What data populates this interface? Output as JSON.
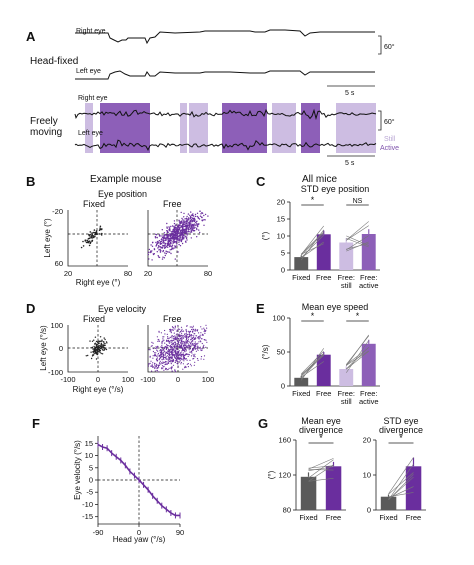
{
  "colors": {
    "fixed": "#5a5a5a",
    "free": "#6a2e9e",
    "still": "#cdbde2",
    "active": "#8d5fb8",
    "line": "#777777"
  },
  "panel_labels": {
    "A": "A",
    "B": "B",
    "C": "C",
    "D": "D",
    "E": "E",
    "F": "F",
    "G": "G"
  },
  "panel_a": {
    "head_fixed_label": "Head-fixed",
    "freely_moving_label": "Freely\nmoving",
    "right_eye_label": "Right eye",
    "left_eye_label": "Left eye",
    "scale_deg": "60°",
    "scale_time": "5 s",
    "legend_still": "Still",
    "legend_active": "Active"
  },
  "col_headers": {
    "example": "Example mouse",
    "all": "All mice"
  },
  "panel_b": {
    "title": "Eye position",
    "sub_fixed": "Fixed",
    "sub_free": "Free",
    "xlabel": "Right eye (°)",
    "ylabel": "Left eye (°)",
    "xticks": [
      "20",
      "80"
    ],
    "xticks_free": [
      "20",
      "80"
    ],
    "yticks": [
      "-20",
      "60"
    ]
  },
  "panel_d": {
    "title": "Eye velocity",
    "sub_fixed": "Fixed",
    "sub_free": "Free",
    "xlabel": "Right eye (°/s)",
    "ylabel": "Left eye (°/s)",
    "xticks": [
      "-100",
      "0",
      "100"
    ],
    "xticks_free": [
      "-100",
      "0",
      "100"
    ],
    "yticks": [
      "100",
      "0",
      "-100"
    ]
  },
  "panel_f": {
    "xlabel": "Head yaw (°/s)",
    "ylabel": "Eye velocity (°/s)",
    "xticks": [
      "-90",
      "0",
      "90"
    ],
    "yticks": [
      "15",
      "10",
      "5",
      "0",
      "-5",
      "-10",
      "-15"
    ]
  },
  "chart_data": [
    {
      "panel": "C",
      "type": "bar",
      "title": "STD eye position",
      "ylabel": "(°)",
      "ylim": [
        0,
        20
      ],
      "yticks": [
        "0",
        "5",
        "10",
        "15",
        "20"
      ],
      "categories": [
        "Fixed",
        "Free",
        "Free:\nstill",
        "Free:\nactive"
      ],
      "values": [
        3.8,
        10.5,
        8.1,
        10.6
      ],
      "errors": [
        0.5,
        1.1,
        1.3,
        1.4
      ],
      "significance": [
        "*",
        "NS"
      ]
    },
    {
      "panel": "E",
      "type": "bar",
      "title": "Mean eye speed",
      "ylabel": "(°/s)",
      "ylim": [
        0,
        100
      ],
      "yticks": [
        "0",
        "50",
        "100"
      ],
      "categories": [
        "Fixed",
        "Free",
        "Free:\nstill",
        "Free:\nactive"
      ],
      "values": [
        12,
        46,
        25,
        62
      ],
      "errors": [
        3,
        4,
        4,
        6
      ],
      "significance": [
        "*",
        "*"
      ]
    },
    {
      "panel": "G1",
      "type": "bar",
      "title": "Mean eye\ndivergence",
      "ylabel": "(°)",
      "ylim": [
        80,
        160
      ],
      "yticks": [
        "80",
        "120",
        "160"
      ],
      "categories": [
        "Fixed",
        "Free"
      ],
      "values": [
        118,
        130
      ],
      "errors": [
        5,
        5
      ],
      "significance": [
        "*"
      ]
    },
    {
      "panel": "G2",
      "type": "bar",
      "title": "STD eye\ndivergence",
      "ylabel": "",
      "ylim": [
        0,
        20
      ],
      "yticks": [
        "0",
        "10",
        "20"
      ],
      "categories": [
        "Fixed",
        "Free"
      ],
      "values": [
        3.8,
        12.5
      ],
      "errors": [
        0.6,
        2.5
      ],
      "significance": [
        "*"
      ]
    },
    {
      "panel": "F",
      "type": "line",
      "xlim": [
        -90,
        90
      ],
      "ylim": [
        -18,
        18
      ],
      "x": [
        -90,
        -80,
        -70,
        -60,
        -50,
        -40,
        -30,
        -20,
        -10,
        0,
        10,
        20,
        30,
        40,
        50,
        60,
        70,
        80,
        90
      ],
      "y": [
        14.5,
        13.5,
        13,
        11,
        9.5,
        8,
        6,
        3.5,
        1.8,
        0,
        -2,
        -4,
        -6.5,
        -8.5,
        -10.5,
        -12,
        -13.5,
        -14.5,
        -14.5
      ]
    }
  ]
}
